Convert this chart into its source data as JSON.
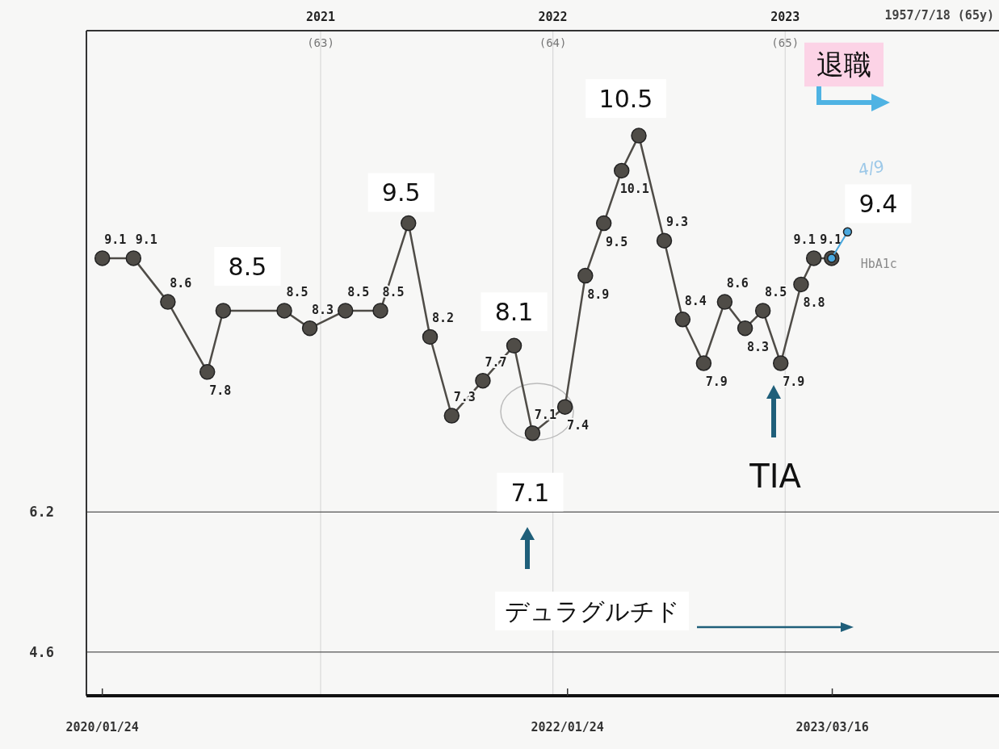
{
  "chart_data": {
    "type": "line",
    "xlim": [
      "2019-12-30",
      "2023-12-03"
    ],
    "xticks": [
      {
        "value": "2020-01-24",
        "label": "2020/01/24"
      },
      {
        "value": "2022-01-24",
        "label": "2022/01/24"
      },
      {
        "value": "2023-03-16",
        "label": "2023/03/16"
      }
    ],
    "x2lim": [
      "2019-12-30",
      "2023-12-03"
    ],
    "x2ticks": [
      {
        "value": "2021-01-01",
        "label": "2021 (63)"
      },
      {
        "value": "2022-01-01",
        "label": "2022 (64)"
      },
      {
        "value": "2023-01-01",
        "label": "2023 (65)"
      }
    ],
    "ylim": [
      4.1,
      11.7
    ],
    "yticks": [
      6.2,
      4.6
    ],
    "grid": true,
    "marker": "circle",
    "line_style": "solid",
    "series": [
      {
        "name": "HbA1c",
        "color": "#4f4c47",
        "x": [
          "2020-01-24",
          "2020-03-13",
          "2020-05-06",
          "2020-07-07",
          "2020-08-01",
          "2020-11-05",
          "2020-12-15",
          "2021-02-09",
          "2021-04-05",
          "2021-05-19",
          "2021-06-22",
          "2021-07-26",
          "2021-09-13",
          "2021-11-01",
          "2021-11-30",
          "2022-01-20",
          "2022-02-21",
          "2022-03-22",
          "2022-04-19",
          "2022-05-16",
          "2022-06-25",
          "2022-07-24",
          "2022-08-26",
          "2022-09-28",
          "2022-10-30",
          "2022-11-27",
          "2022-12-25",
          "2023-01-26",
          "2023-02-15",
          "2023-03-15"
        ],
        "values": [
          9.1,
          9.1,
          8.6,
          7.8,
          8.5,
          8.5,
          8.3,
          8.5,
          8.5,
          9.5,
          8.2,
          7.3,
          7.7,
          8.1,
          7.1,
          7.4,
          8.9,
          9.5,
          10.1,
          10.5,
          9.3,
          8.4,
          7.9,
          8.6,
          8.3,
          8.5,
          7.9,
          8.8,
          9.1,
          9.1
        ],
        "value_labels": [
          "9.1",
          "9.1",
          "8.6",
          "7.8",
          null,
          "8.5",
          "8.3",
          "8.5",
          "8.5",
          null,
          "8.2",
          "7.3",
          "7.7",
          null,
          "7.1",
          "7.4",
          "8.9",
          "9.5",
          "10.1",
          null,
          "9.3",
          "8.4",
          "7.9",
          "8.6",
          "8.3",
          "8.5",
          "7.9",
          "8.8",
          "9.1",
          "9.1"
        ]
      },
      {
        "color": "#4aa8de",
        "x": [
          "2023-03-15",
          "2023-04-09"
        ],
        "values": [
          9.1,
          9.4
        ]
      }
    ],
    "annotations": [
      {
        "text": "8.5",
        "x": "2020-08-01",
        "y": 8.5
      },
      {
        "text": "9.5",
        "x": "2021-05-19",
        "y": 9.5
      },
      {
        "text": "8.1",
        "x": "2021-11-01",
        "y": 8.1
      },
      {
        "text": "10.5",
        "x": "2022-05-16",
        "y": 10.5
      },
      {
        "text": "7.1",
        "x": "2021-11-30",
        "y": 7.1
      },
      "デュラグルチド",
      "TIA",
      "退職",
      {
        "text": "9.4",
        "x": "2023-04-09",
        "y": 9.4
      },
      "4/9",
      "1957/7/18 (65y)"
    ]
  }
}
